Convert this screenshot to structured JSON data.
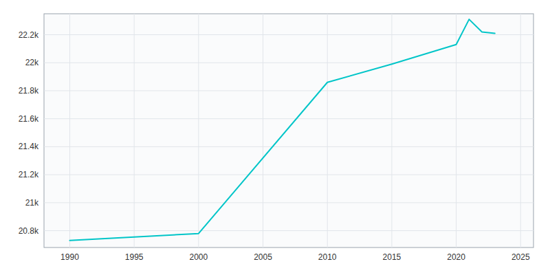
{
  "chart_data": {
    "type": "line",
    "x": [
      1990,
      2000,
      2010,
      2015,
      2020,
      2021,
      2022,
      2023
    ],
    "values": [
      20730,
      20780,
      21860,
      21990,
      22130,
      22310,
      22220,
      22210
    ],
    "color": "#00C5C8",
    "xlim": [
      1988,
      2026
    ],
    "ylim": [
      20680,
      22350
    ],
    "xticks": [
      1990,
      1995,
      2000,
      2005,
      2010,
      2015,
      2020,
      2025
    ],
    "yticks": [
      {
        "value": 20800,
        "label": "20.8k"
      },
      {
        "value": 21000,
        "label": "21k"
      },
      {
        "value": 21200,
        "label": "21.2k"
      },
      {
        "value": 21400,
        "label": "21.4k"
      },
      {
        "value": 21600,
        "label": "21.6k"
      },
      {
        "value": 21800,
        "label": "21.8k"
      },
      {
        "value": 22000,
        "label": "22k"
      },
      {
        "value": 22200,
        "label": "22.2k"
      }
    ],
    "grid": true
  }
}
